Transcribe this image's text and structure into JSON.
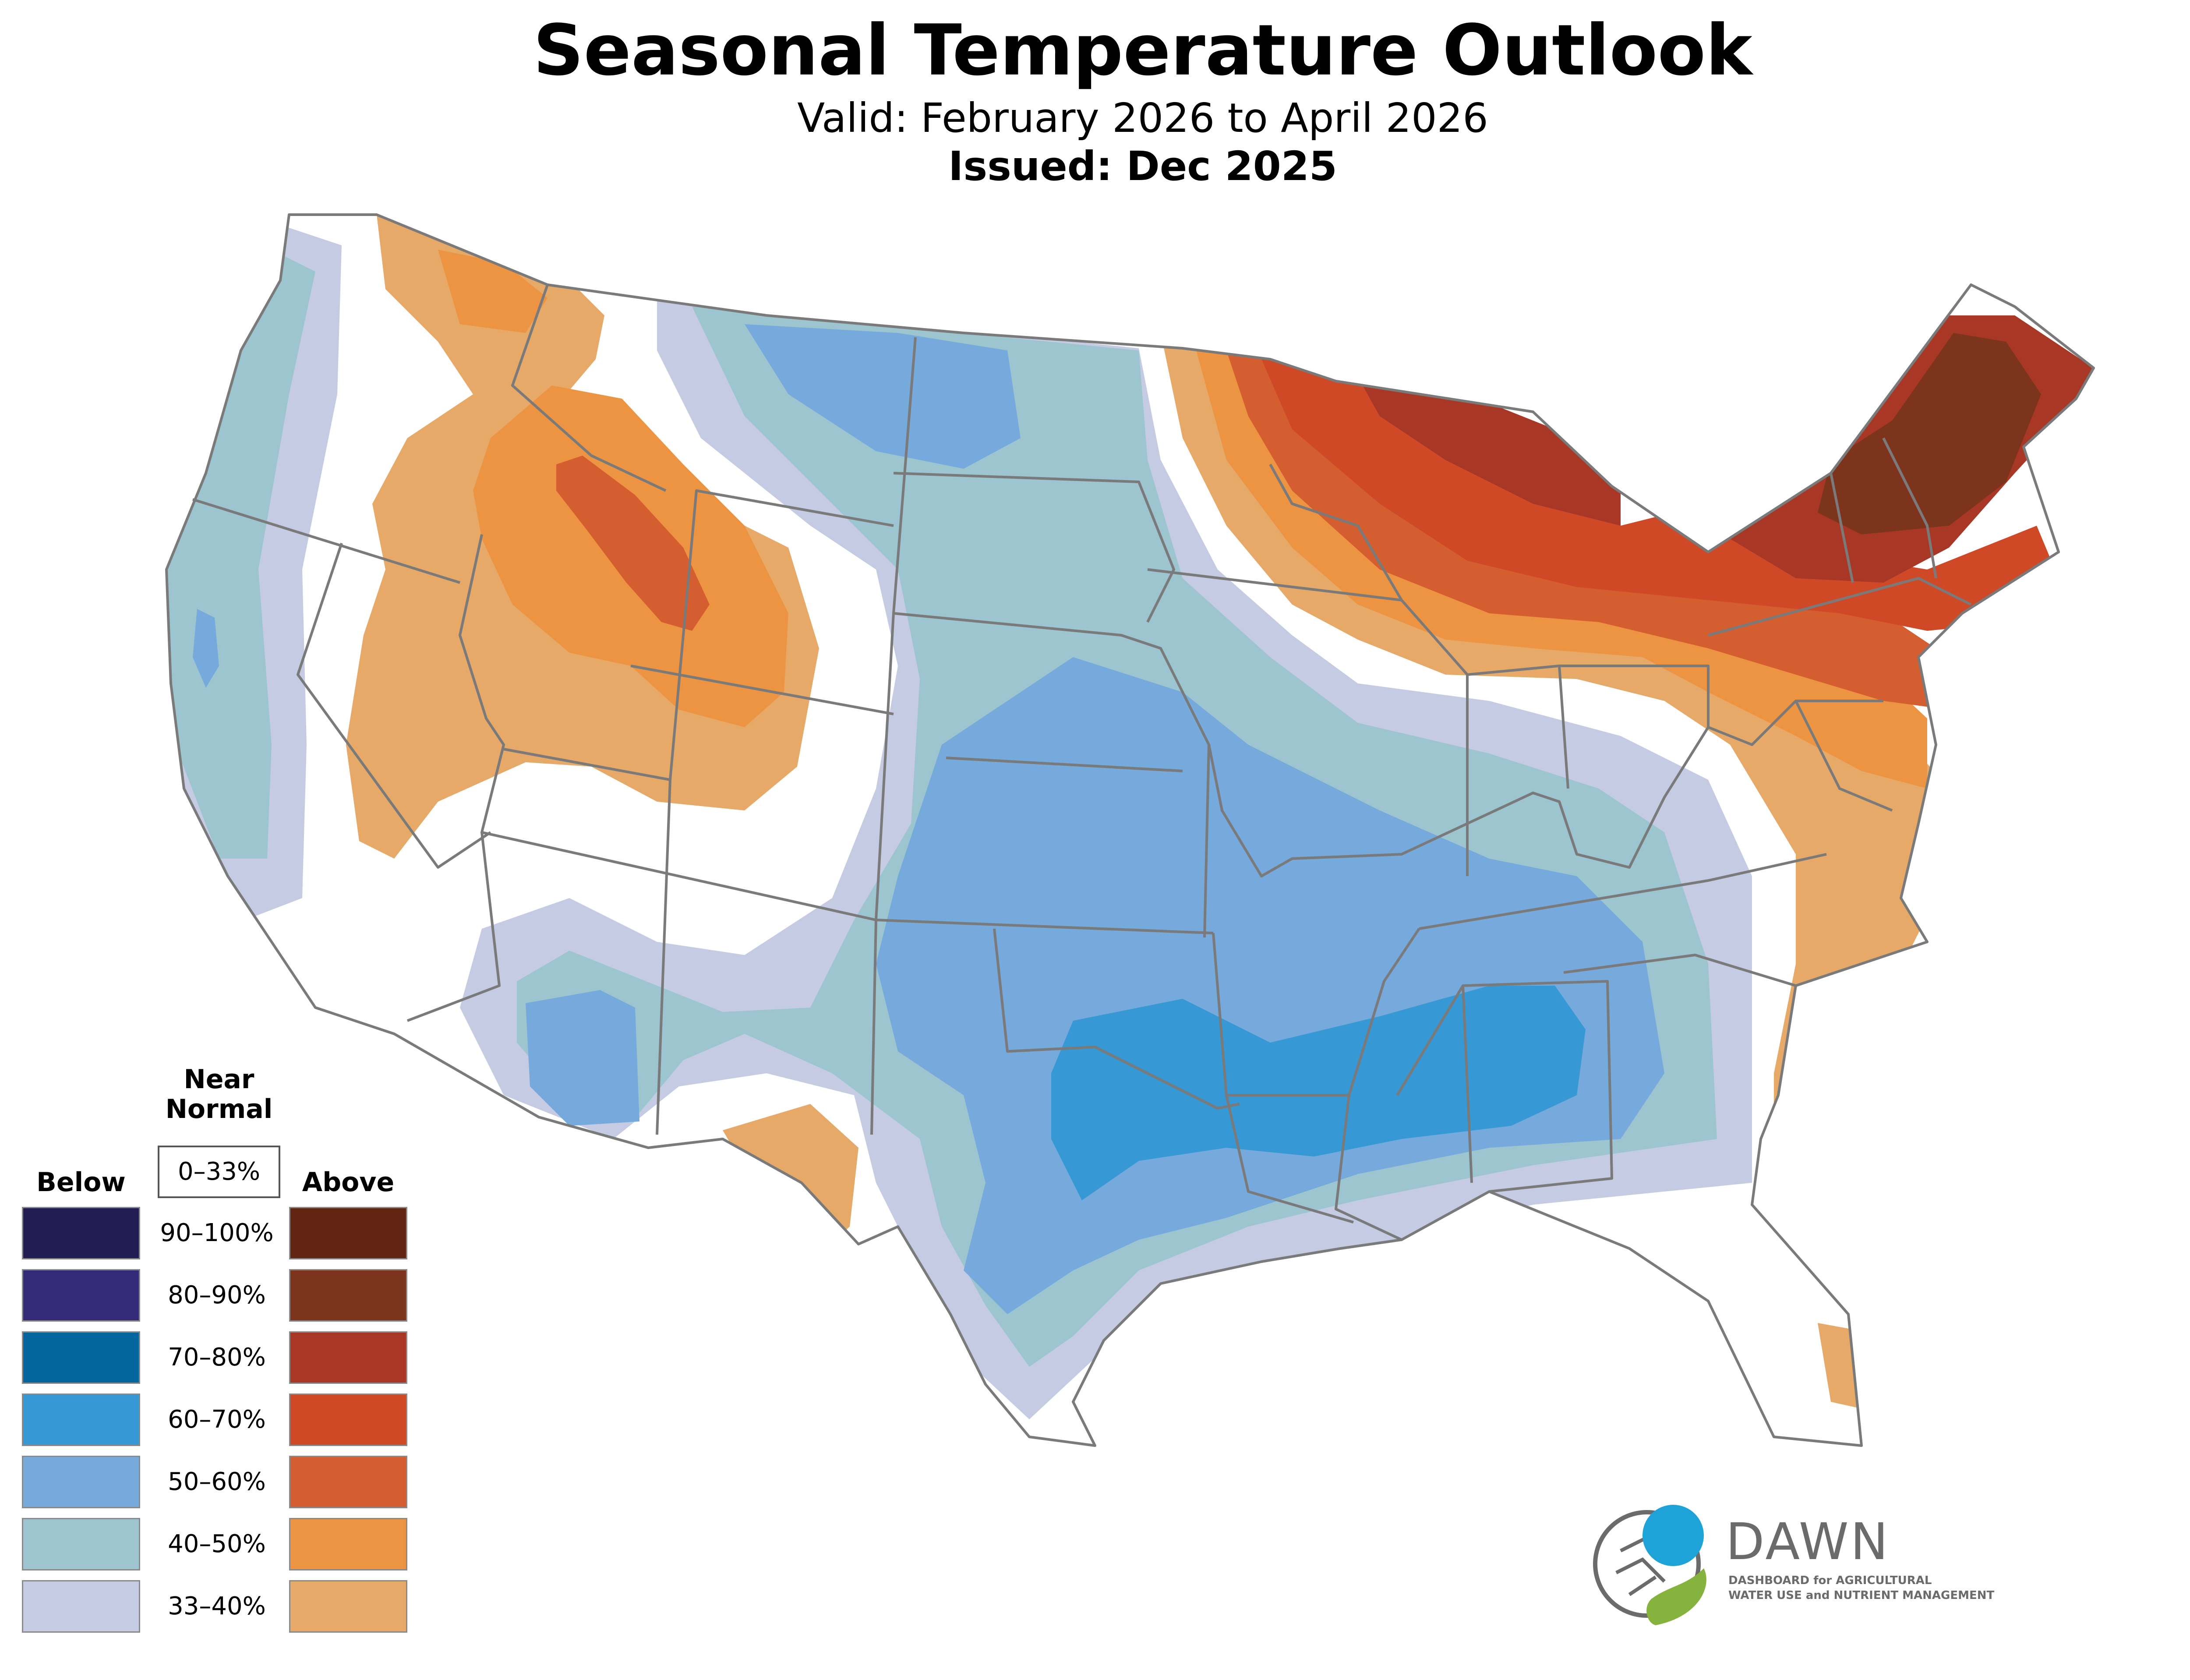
{
  "title": "Seasonal Temperature Outlook",
  "valid": "Valid: February 2026 to April 2026",
  "issued": "Issued: Dec 2025",
  "map": {
    "region": "Contiguous United States",
    "base_fill": "#ffffff",
    "state_border_color": "#7a7a7a"
  },
  "legend": {
    "near_normal_label": "Near Normal",
    "near_normal_range": "0–33%",
    "below_label": "Below",
    "above_label": "Above",
    "rows": [
      {
        "range": "90–100%",
        "below_color": "#211c52",
        "above_color": "#622512"
      },
      {
        "range": "80–90%",
        "below_color": "#332b77",
        "above_color": "#7d341c"
      },
      {
        "range": "70–80%",
        "below_color": "#05659d",
        "above_color": "#a83825"
      },
      {
        "range": "60–70%",
        "below_color": "#3698d4",
        "above_color": "#cf4927"
      },
      {
        "range": "50–60%",
        "below_color": "#76a9dc",
        "above_color": "#d55e31"
      },
      {
        "range": "40–50%",
        "below_color": "#9cc5d0",
        "above_color": "#ec9442"
      },
      {
        "range": "33–40%",
        "below_color": "#c6cbe4",
        "above_color": "#e7a968"
      }
    ]
  },
  "logo": {
    "name": "DAWN",
    "line1": "DASHBOARD for AGRICULTURAL",
    "line2": "WATER USE and NUTRIENT MANAGEMENT",
    "colors": {
      "blue": "#1ea3d8",
      "green": "#86b33e",
      "grey": "#6b6b6b"
    }
  }
}
